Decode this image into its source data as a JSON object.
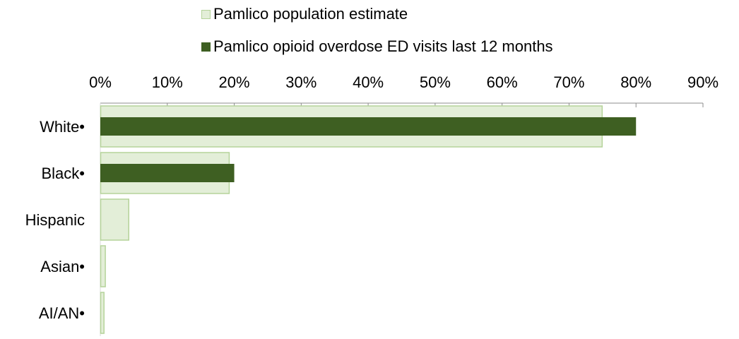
{
  "chart_data": {
    "type": "bar",
    "orientation": "horizontal",
    "categories": [
      "White•",
      "Black•",
      "Hispanic",
      "Asian•",
      "AI/AN•"
    ],
    "series": [
      {
        "name": "Pamlico population estimate",
        "color": "#e3eed8",
        "border": "#b5d39a",
        "values": [
          75,
          19.3,
          4.3,
          0.8,
          0.6
        ]
      },
      {
        "name": "Pamlico opioid overdose ED visits last 12 months",
        "color": "#3e5f22",
        "border": "#3e5f22",
        "values": [
          80,
          20,
          0,
          0,
          0
        ]
      }
    ],
    "xlim": [
      0,
      90
    ],
    "xticks": [
      "0%",
      "10%",
      "20%",
      "30%",
      "40%",
      "50%",
      "60%",
      "70%",
      "80%",
      "90%"
    ],
    "tick_step": 10,
    "axis_position": "top",
    "legend_position": "top",
    "grid": false
  }
}
